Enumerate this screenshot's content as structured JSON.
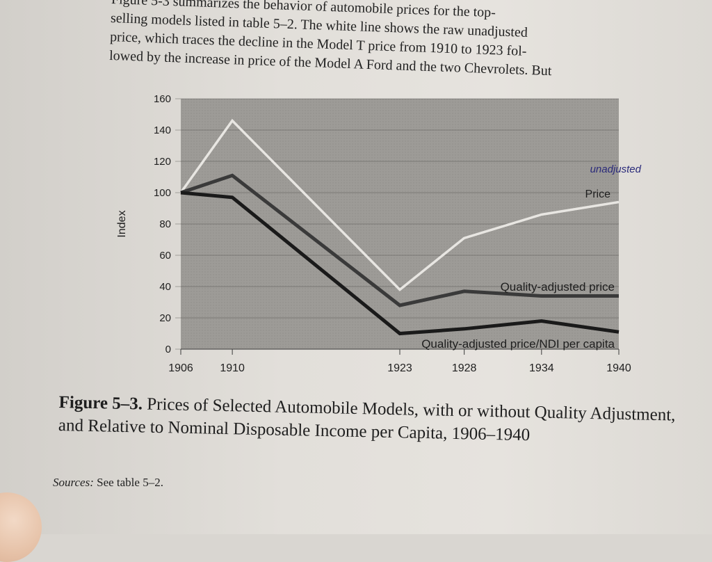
{
  "intro_text": {
    "line1": "Figure 5-3 summarizes the behavior of automobile prices for the top-",
    "line2": "selling models listed in table 5–2. The white line shows the raw unadjusted",
    "line3": "price, which traces the decline in the Model T price from 1910 to 1923 fol-",
    "line4": "lowed by the increase in price of the Model A Ford and the two Chevrolets. But"
  },
  "chart_data": {
    "type": "line",
    "ylabel": "Index",
    "ylim": [
      0,
      160
    ],
    "yticks": [
      "0",
      "20",
      "40",
      "60",
      "80",
      "100",
      "120",
      "140",
      "160"
    ],
    "x": [
      1906,
      1910,
      1923,
      1928,
      1934,
      1940
    ],
    "xtick_labels": [
      "1906",
      "1910",
      "1923",
      "1928",
      "1934",
      "1940"
    ],
    "grid": true,
    "series": [
      {
        "name": "Price",
        "annotation": "unadjusted",
        "color": "#e8e6e2",
        "values": [
          100,
          146,
          38,
          71,
          86,
          94
        ]
      },
      {
        "name": "Quality-adjusted price",
        "color": "#3a3a3a",
        "values": [
          100,
          111,
          28,
          37,
          34,
          34
        ]
      },
      {
        "name": "Quality-adjusted price/NDI per capita",
        "color": "#1a1a1a",
        "values": [
          100,
          97,
          10,
          13,
          18,
          11
        ]
      }
    ]
  },
  "caption": {
    "label": "Figure 5–3.",
    "text": "Prices of Selected Automobile Models, with or without Quality Adjustment, and Relative to Nominal Disposable Income per Capita, 1906–1940"
  },
  "sources": {
    "label": "Sources:",
    "text": "See table 5–2."
  }
}
